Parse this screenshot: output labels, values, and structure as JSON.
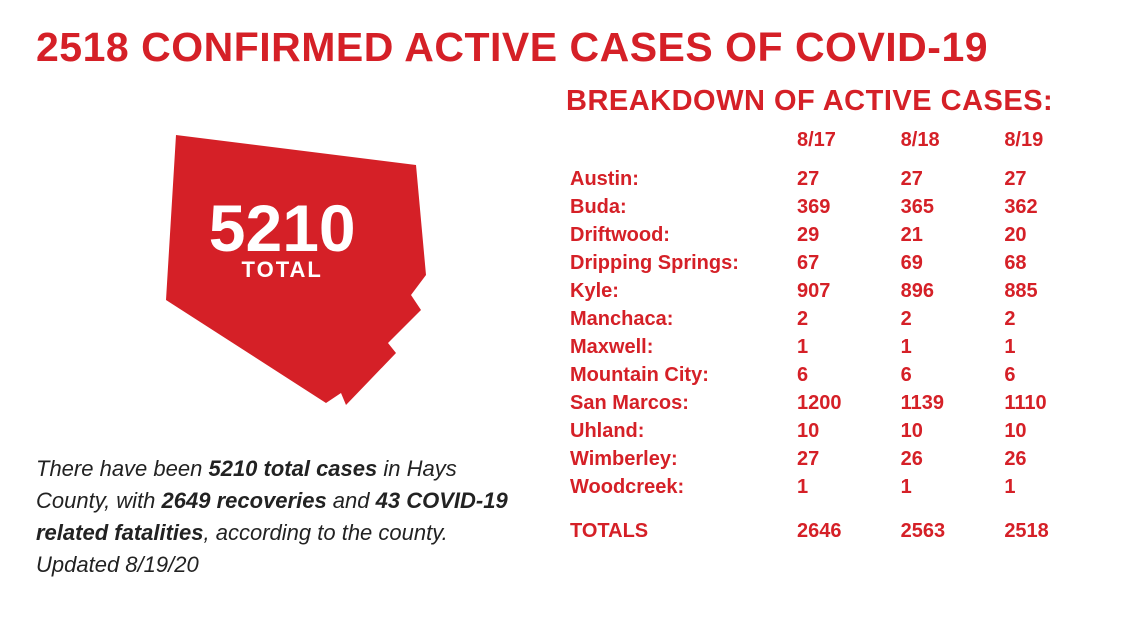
{
  "colors": {
    "primary": "#d52027",
    "background": "#ffffff",
    "text_dark": "#222222",
    "white": "#ffffff"
  },
  "typography": {
    "headline_fontsize": 41,
    "headline_weight": 800,
    "subtitle_fontsize": 29,
    "summary_fontsize": 22,
    "table_fontsize": 20
  },
  "headline": "2518 CONFIRMED ACTIVE CASES OF COVID-19",
  "map": {
    "total_number": "5210",
    "total_label": "TOTAL",
    "fill_color": "#d52027",
    "number_fontsize": 66,
    "label_fontsize": 22
  },
  "summary": {
    "pre": "There have been ",
    "total_cases_bold": "5210 total cases",
    "mid1": " in Hays County, with ",
    "recoveries_bold": "2649 recoveries",
    "mid2": " and ",
    "fatalities_bold": "43 COVID-19 related fatalities",
    "post": ", according to the county. Updated 8/19/20"
  },
  "breakdown": {
    "title": "BREAKDOWN OF ACTIVE CASES:",
    "date_columns": [
      "8/17",
      "8/18",
      "8/19"
    ],
    "rows": [
      {
        "city": "Austin:",
        "v": [
          "27",
          "27",
          "27"
        ]
      },
      {
        "city": "Buda:",
        "v": [
          "369",
          "365",
          "362"
        ]
      },
      {
        "city": "Driftwood:",
        "v": [
          "29",
          "21",
          "20"
        ]
      },
      {
        "city": "Dripping Springs:",
        "v": [
          "67",
          "69",
          "68"
        ]
      },
      {
        "city": "Kyle:",
        "v": [
          "907",
          "896",
          "885"
        ]
      },
      {
        "city": "Manchaca:",
        "v": [
          "2",
          "2",
          "2"
        ]
      },
      {
        "city": "Maxwell:",
        "v": [
          "1",
          "1",
          "1"
        ]
      },
      {
        "city": "Mountain City:",
        "v": [
          "6",
          "6",
          "6"
        ]
      },
      {
        "city": "San Marcos:",
        "v": [
          "1200",
          "1139",
          "1110"
        ]
      },
      {
        "city": "Uhland:",
        "v": [
          "10",
          "10",
          "10"
        ]
      },
      {
        "city": "Wimberley:",
        "v": [
          "27",
          "26",
          "26"
        ]
      },
      {
        "city": "Woodcreek:",
        "v": [
          "1",
          "1",
          "1"
        ]
      }
    ],
    "totals_label": "TOTALS",
    "totals": [
      "2646",
      "2563",
      "2518"
    ]
  }
}
